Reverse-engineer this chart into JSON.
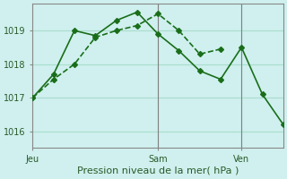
{
  "title": "",
  "xlabel": "Pression niveau de la mer( hPa )",
  "ylabel": "",
  "bg_color": "#cff0ee",
  "grid_color": "#aaddcc",
  "line_color": "#1a6e1a",
  "line1_x": [
    0,
    2,
    4,
    6,
    8,
    10,
    12,
    14,
    16,
    18
  ],
  "line1_y": [
    1017.0,
    1017.55,
    1018.0,
    1018.8,
    1019.0,
    1019.15,
    1019.5,
    1019.0,
    1018.3,
    1018.45
  ],
  "line2_x": [
    0,
    2,
    4,
    6,
    8,
    10,
    12,
    14,
    16,
    18,
    20,
    22,
    24
  ],
  "line2_y": [
    1017.0,
    1017.7,
    1019.0,
    1018.85,
    1019.3,
    1019.55,
    1018.9,
    1018.4,
    1017.8,
    1017.55,
    1018.5,
    1017.1,
    1016.2
  ],
  "xtick_positions": [
    0,
    12,
    20
  ],
  "xtick_labels": [
    "Jeu",
    "Sam",
    "Ven"
  ],
  "ytick_values": [
    1016,
    1017,
    1018,
    1019
  ],
  "xmin": 0,
  "xmax": 24,
  "ymin": 1015.5,
  "ymax": 1019.8,
  "vline_x": [
    12,
    20
  ],
  "marker": "D",
  "markersize": 3
}
